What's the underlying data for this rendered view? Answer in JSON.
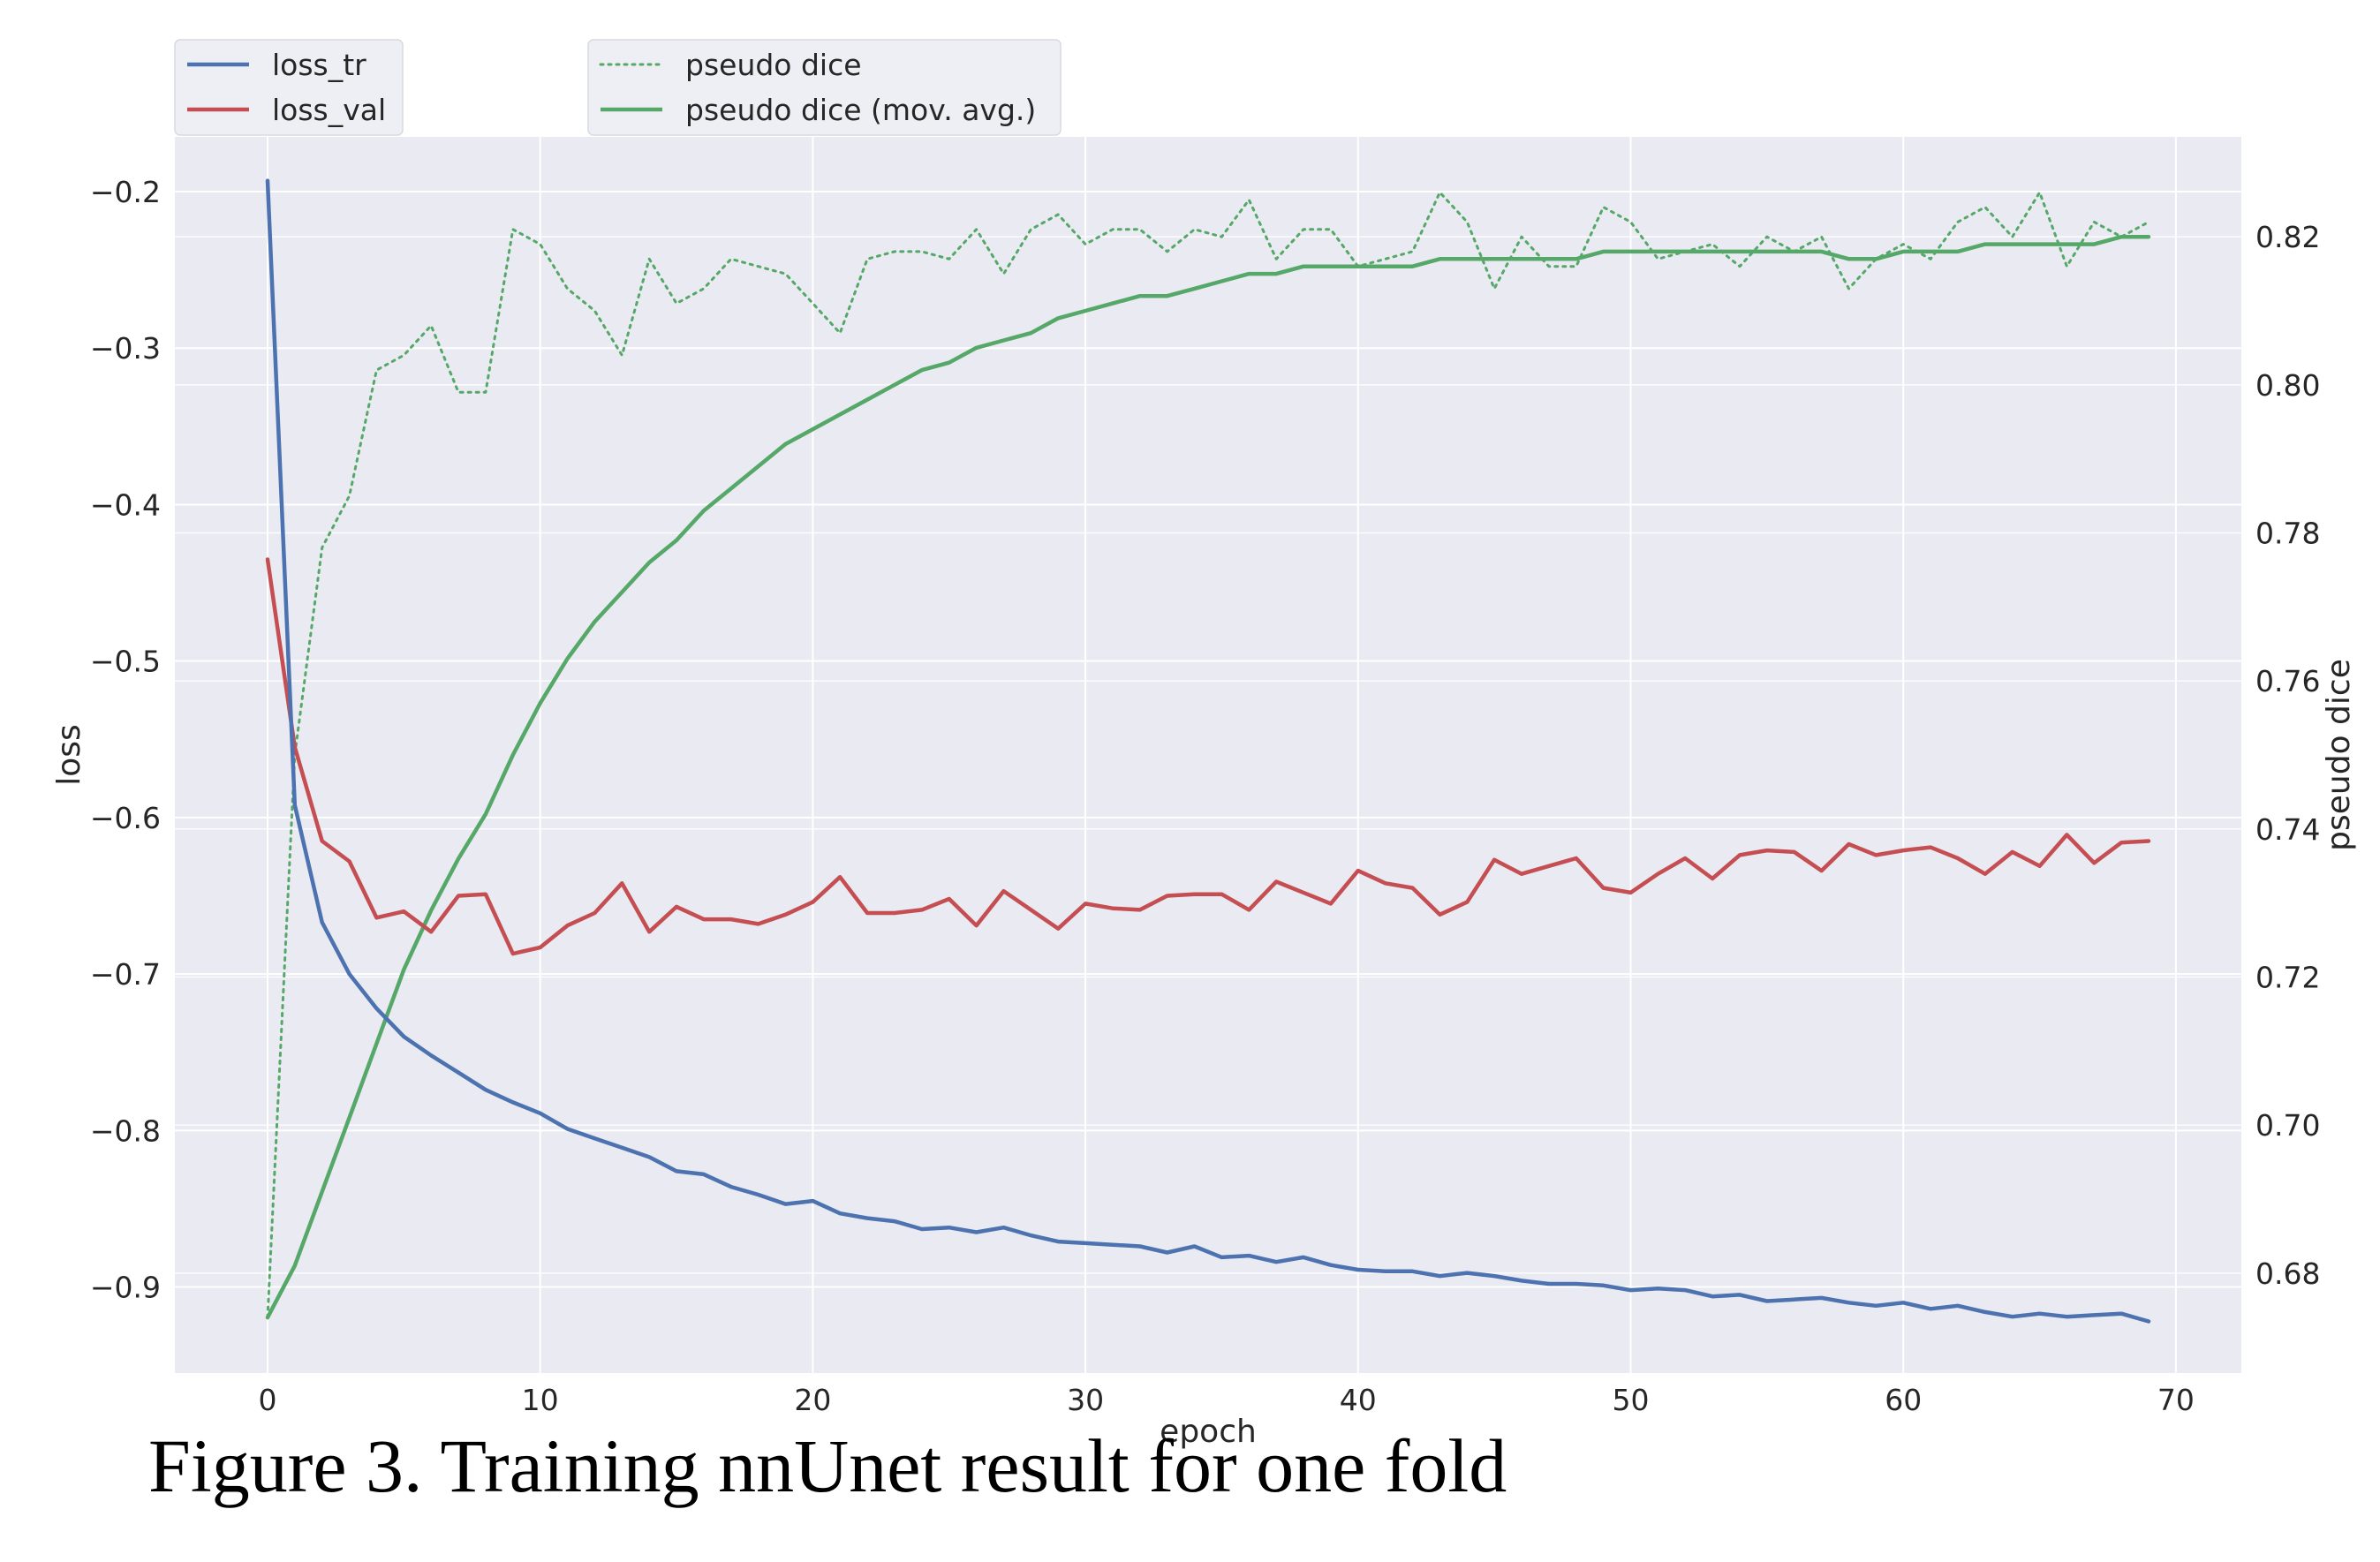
{
  "caption": "Figure 3. Training nnUnet result for one fold",
  "chart_data": {
    "type": "line",
    "xlabel": "epoch",
    "ylabel": "loss",
    "y2label": "pseudo dice",
    "xlim": [
      -3.4,
      72.4
    ],
    "ylim": [
      -0.955,
      -0.165
    ],
    "y2lim": [
      0.6665,
      0.8335
    ],
    "xticks": [
      0,
      10,
      20,
      30,
      40,
      50,
      60,
      70
    ],
    "yticks": [
      -0.2,
      -0.3,
      -0.4,
      -0.5,
      -0.6,
      -0.7,
      -0.8,
      -0.9
    ],
    "ytick_labels": [
      "−0.2",
      "−0.3",
      "−0.4",
      "−0.5",
      "−0.6",
      "−0.7",
      "−0.8",
      "−0.9"
    ],
    "y2ticks": [
      0.82,
      0.8,
      0.78,
      0.76,
      0.74,
      0.72,
      0.7,
      0.68
    ],
    "y2tick_labels": [
      "0.82",
      "0.80",
      "0.78",
      "0.76",
      "0.74",
      "0.72",
      "0.70",
      "0.68"
    ],
    "grid": true,
    "background": "#eaeaf2",
    "legends": [
      {
        "placement": "top-left",
        "entries": [
          {
            "label": "loss_tr",
            "series": "loss_tr"
          },
          {
            "label": "loss_val",
            "series": "loss_val"
          }
        ]
      },
      {
        "placement": "top-center",
        "entries": [
          {
            "label": "pseudo dice",
            "series": "pseudo_dice"
          },
          {
            "label": "pseudo dice (mov. avg.)",
            "series": "pseudo_dice_mov_avg"
          }
        ]
      }
    ],
    "x": [
      0,
      1,
      2,
      3,
      4,
      5,
      6,
      7,
      8,
      9,
      10,
      11,
      12,
      13,
      14,
      15,
      16,
      17,
      18,
      19,
      20,
      21,
      22,
      23,
      24,
      25,
      26,
      27,
      28,
      29,
      30,
      31,
      32,
      33,
      34,
      35,
      36,
      37,
      38,
      39,
      40,
      41,
      42,
      43,
      44,
      45,
      46,
      47,
      48,
      49,
      50,
      51,
      52,
      53,
      54,
      55,
      56,
      57,
      58,
      59,
      60,
      61,
      62,
      63,
      64,
      65,
      66,
      67,
      68,
      69
    ],
    "series": [
      {
        "key": "loss_tr",
        "name": "loss_tr",
        "axis": "left",
        "color": "#4c72b0",
        "style": "solid",
        "values": [
          -0.193,
          -0.592,
          -0.667,
          -0.7,
          -0.722,
          -0.74,
          -0.752,
          -0.763,
          -0.774,
          -0.782,
          -0.789,
          -0.799,
          -0.805,
          -0.811,
          -0.817,
          -0.826,
          -0.828,
          -0.836,
          -0.841,
          -0.847,
          -0.845,
          -0.853,
          -0.856,
          -0.858,
          -0.863,
          -0.862,
          -0.865,
          -0.862,
          -0.867,
          -0.871,
          -0.872,
          -0.873,
          -0.874,
          -0.878,
          -0.874,
          -0.881,
          -0.88,
          -0.884,
          -0.881,
          -0.886,
          -0.889,
          -0.89,
          -0.89,
          -0.893,
          -0.891,
          -0.893,
          -0.896,
          -0.898,
          -0.898,
          -0.899,
          -0.902,
          -0.901,
          -0.902,
          -0.906,
          -0.905,
          -0.909,
          -0.908,
          -0.907,
          -0.91,
          -0.912,
          -0.91,
          -0.914,
          -0.912,
          -0.916,
          -0.919,
          -0.917,
          -0.919,
          -0.918,
          -0.917,
          -0.922
        ]
      },
      {
        "key": "loss_val",
        "name": "loss_val",
        "axis": "left",
        "color": "#c44e52",
        "style": "solid",
        "values": [
          -0.435,
          -0.555,
          -0.615,
          -0.628,
          -0.664,
          -0.66,
          -0.673,
          -0.65,
          -0.649,
          -0.687,
          -0.683,
          -0.669,
          -0.661,
          -0.642,
          -0.673,
          -0.657,
          -0.665,
          -0.665,
          -0.668,
          -0.662,
          -0.654,
          -0.638,
          -0.661,
          -0.661,
          -0.659,
          -0.652,
          -0.669,
          -0.647,
          -0.659,
          -0.671,
          -0.655,
          -0.658,
          -0.659,
          -0.65,
          -0.649,
          -0.649,
          -0.659,
          -0.641,
          -0.648,
          -0.655,
          -0.634,
          -0.642,
          -0.645,
          -0.662,
          -0.654,
          -0.627,
          -0.636,
          -0.631,
          -0.626,
          -0.645,
          -0.648,
          -0.636,
          -0.626,
          -0.639,
          -0.624,
          -0.621,
          -0.622,
          -0.634,
          -0.617,
          -0.624,
          -0.621,
          -0.619,
          -0.626,
          -0.636,
          -0.622,
          -0.631,
          -0.611,
          -0.629,
          -0.616,
          -0.615
        ]
      },
      {
        "key": "pseudo_dice",
        "name": "pseudo dice",
        "axis": "right",
        "color": "#55a868",
        "style": "dotted",
        "values": [
          0.674,
          0.75,
          0.778,
          0.785,
          0.802,
          0.804,
          0.808,
          0.799,
          0.799,
          0.821,
          0.819,
          0.813,
          0.81,
          0.804,
          0.817,
          0.811,
          0.813,
          0.817,
          0.816,
          0.815,
          0.811,
          0.807,
          0.817,
          0.818,
          0.818,
          0.817,
          0.821,
          0.815,
          0.821,
          0.823,
          0.819,
          0.821,
          0.821,
          0.818,
          0.821,
          0.82,
          0.825,
          0.817,
          0.821,
          0.821,
          0.816,
          0.817,
          0.818,
          0.826,
          0.822,
          0.813,
          0.82,
          0.816,
          0.816,
          0.824,
          0.822,
          0.817,
          0.818,
          0.819,
          0.816,
          0.82,
          0.818,
          0.82,
          0.813,
          0.817,
          0.819,
          0.817,
          0.822,
          0.824,
          0.82,
          0.826,
          0.816,
          0.822,
          0.82,
          0.822
        ]
      },
      {
        "key": "pseudo_dice_mov_avg",
        "name": "pseudo dice (mov. avg.)",
        "axis": "right",
        "color": "#55a868",
        "style": "solid",
        "values": [
          0.674,
          0.681,
          0.691,
          0.701,
          0.711,
          0.721,
          0.729,
          0.736,
          0.742,
          0.75,
          0.757,
          0.763,
          0.768,
          0.772,
          0.776,
          0.779,
          0.783,
          0.786,
          0.789,
          0.792,
          0.794,
          0.796,
          0.798,
          0.8,
          0.802,
          0.803,
          0.805,
          0.806,
          0.807,
          0.809,
          0.81,
          0.811,
          0.812,
          0.812,
          0.813,
          0.814,
          0.815,
          0.815,
          0.816,
          0.816,
          0.816,
          0.816,
          0.816,
          0.817,
          0.817,
          0.817,
          0.817,
          0.817,
          0.817,
          0.818,
          0.818,
          0.818,
          0.818,
          0.818,
          0.818,
          0.818,
          0.818,
          0.818,
          0.817,
          0.817,
          0.818,
          0.818,
          0.818,
          0.819,
          0.819,
          0.819,
          0.819,
          0.819,
          0.82,
          0.82
        ]
      }
    ]
  }
}
